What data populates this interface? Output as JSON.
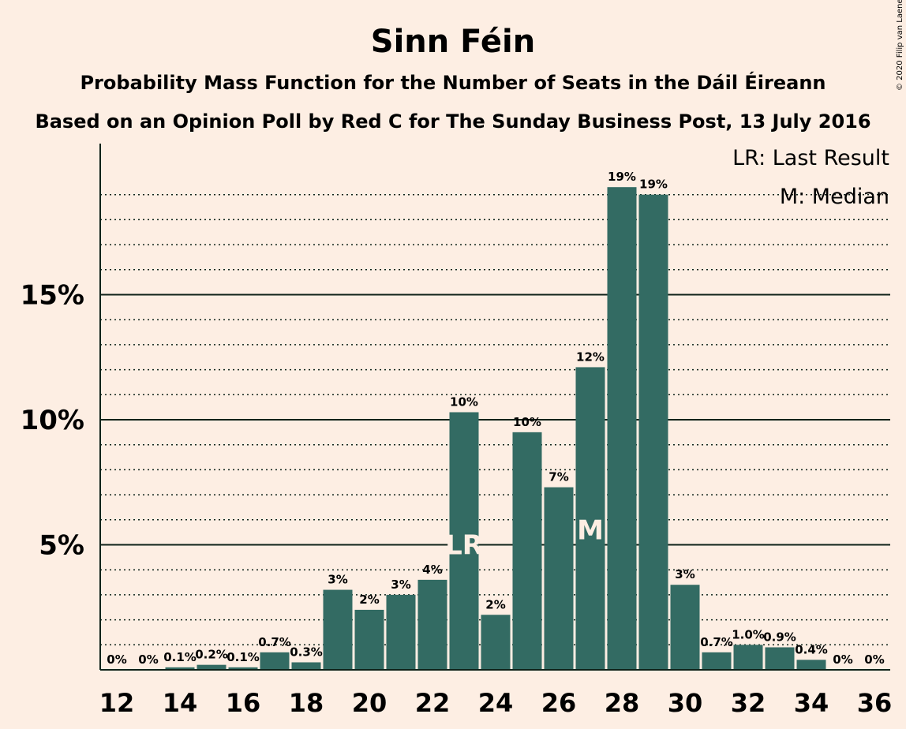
{
  "chart_data": {
    "type": "bar",
    "title": "Sinn Féin",
    "subtitle": "Probability Mass Function for the Number of Seats in the Dáil Éireann",
    "subtitle2": "Based on an Opinion Poll by Red C for The Sunday Business Post, 13 July 2016",
    "copyright": "© 2020 Filip van Laenen",
    "x": [
      12,
      13,
      14,
      15,
      16,
      17,
      18,
      19,
      20,
      21,
      22,
      23,
      24,
      25,
      26,
      27,
      28,
      29,
      30,
      31,
      32,
      33,
      34,
      35,
      36
    ],
    "values": [
      0,
      0,
      0.1,
      0.2,
      0.1,
      0.7,
      0.3,
      3.2,
      2.4,
      3.0,
      3.6,
      10.3,
      2.2,
      9.5,
      7.3,
      12.1,
      19.3,
      19.0,
      3.4,
      0.7,
      1.0,
      0.9,
      0.4,
      0,
      0
    ],
    "data_labels": [
      "0%",
      "0%",
      "0.1%",
      "0.2%",
      "0.1%",
      "0.7%",
      "0.3%",
      "3%",
      "2%",
      "3%",
      "4%",
      "10%",
      "2%",
      "10%",
      "7%",
      "12%",
      "19%",
      "19%",
      "3%",
      "0.7%",
      "1.0%",
      "0.9%",
      "0.4%",
      "0%",
      "0%"
    ],
    "x_tick_labels": [
      "12",
      "14",
      "16",
      "18",
      "20",
      "22",
      "24",
      "26",
      "28",
      "30",
      "32",
      "34",
      "36"
    ],
    "y_tick_labels": [
      "5%",
      "10%",
      "15%"
    ],
    "ylim": [
      0,
      21
    ],
    "last_result_seat": 23,
    "median_seat": 27,
    "markers": {
      "last_result": "LR",
      "median": "M"
    },
    "legend": [
      "LR: Last Result",
      "M: Median"
    ],
    "legend_position": "top-right",
    "grid": "dotted every 1%, solid every 5%",
    "colors": {
      "bar": "#336b63",
      "background": "#fdeee3",
      "text": "#0e2219"
    }
  }
}
